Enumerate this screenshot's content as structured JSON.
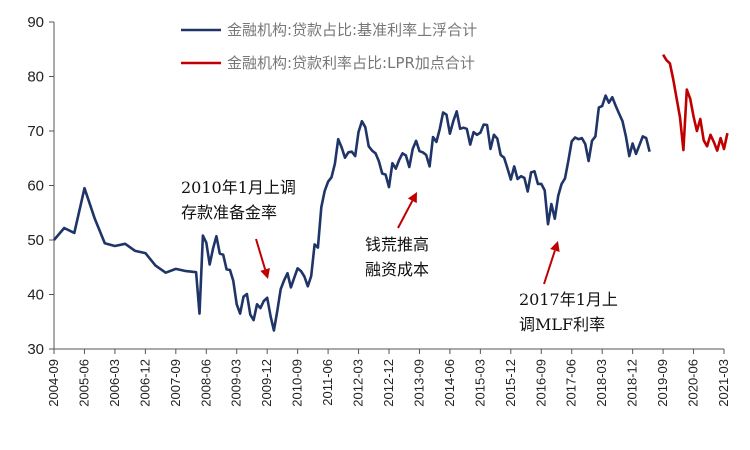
{
  "chart_data": {
    "type": "line",
    "title": "",
    "xlabel": "",
    "ylabel": "",
    "ylim": [
      30,
      90
    ],
    "yticks": [
      30,
      40,
      50,
      60,
      70,
      80,
      90
    ],
    "xticks": [
      "2004-09",
      "2005-06",
      "2006-03",
      "2006-12",
      "2007-09",
      "2008-06",
      "2009-03",
      "2009-12",
      "2010-09",
      "2011-06",
      "2012-03",
      "2012-12",
      "2013-09",
      "2014-06",
      "2015-03",
      "2015-12",
      "2016-09",
      "2017-06",
      "2018-03",
      "2018-12",
      "2019-09",
      "2020-06",
      "2021-03"
    ],
    "xrange": [
      "2004-09",
      "2021-03"
    ],
    "legend_position": "top-center",
    "grid": false,
    "series": [
      {
        "name": "金融机构:贷款占比:基准利率上浮合计",
        "color": "#1f3467",
        "points": [
          [
            "2004-09",
            50.0
          ],
          [
            "2004-12",
            52.2
          ],
          [
            "2005-03",
            51.3
          ],
          [
            "2005-06",
            59.5
          ],
          [
            "2005-09",
            54.0
          ],
          [
            "2005-12",
            49.4
          ],
          [
            "2006-03",
            48.9
          ],
          [
            "2006-06",
            49.3
          ],
          [
            "2006-09",
            48.0
          ],
          [
            "2006-12",
            47.6
          ],
          [
            "2007-03",
            45.3
          ],
          [
            "2007-06",
            44.0
          ],
          [
            "2007-09",
            44.7
          ],
          [
            "2007-12",
            44.3
          ],
          [
            "2008-03",
            44.1
          ],
          [
            "2008-04",
            36.5
          ],
          [
            "2008-05",
            50.8
          ],
          [
            "2008-06",
            49.5
          ],
          [
            "2008-07",
            45.5
          ],
          [
            "2008-08",
            48.4
          ],
          [
            "2008-09",
            50.7
          ],
          [
            "2008-10",
            47.5
          ],
          [
            "2008-11",
            47.3
          ],
          [
            "2008-12",
            44.6
          ],
          [
            "2009-01",
            44.5
          ],
          [
            "2009-02",
            42.5
          ],
          [
            "2009-03",
            38.2
          ],
          [
            "2009-04",
            36.5
          ],
          [
            "2009-05",
            39.6
          ],
          [
            "2009-06",
            40.1
          ],
          [
            "2009-07",
            36.3
          ],
          [
            "2009-08",
            35.3
          ],
          [
            "2009-09",
            38.2
          ],
          [
            "2009-10",
            37.5
          ],
          [
            "2009-11",
            38.8
          ],
          [
            "2009-12",
            39.4
          ],
          [
            "2010-01",
            36.0
          ],
          [
            "2010-02",
            33.4
          ],
          [
            "2010-03",
            37.0
          ],
          [
            "2010-04",
            41.0
          ],
          [
            "2010-05",
            42.6
          ],
          [
            "2010-06",
            43.9
          ],
          [
            "2010-07",
            41.3
          ],
          [
            "2010-08",
            43.1
          ],
          [
            "2010-09",
            44.8
          ],
          [
            "2010-10",
            44.3
          ],
          [
            "2010-11",
            43.3
          ],
          [
            "2010-12",
            41.5
          ],
          [
            "2011-01",
            43.4
          ],
          [
            "2011-02",
            49.2
          ],
          [
            "2011-03",
            48.6
          ],
          [
            "2011-04",
            56.0
          ],
          [
            "2011-05",
            59.0
          ],
          [
            "2011-06",
            60.7
          ],
          [
            "2011-07",
            61.5
          ],
          [
            "2011-08",
            64.0
          ],
          [
            "2011-09",
            68.5
          ],
          [
            "2011-10",
            67.0
          ],
          [
            "2011-11",
            65.1
          ],
          [
            "2011-12",
            66.1
          ],
          [
            "2012-01",
            66.2
          ],
          [
            "2012-02",
            65.4
          ],
          [
            "2012-03",
            69.8
          ],
          [
            "2012-04",
            71.8
          ],
          [
            "2012-05",
            70.7
          ],
          [
            "2012-06",
            67.2
          ],
          [
            "2012-07",
            66.4
          ],
          [
            "2012-08",
            65.9
          ],
          [
            "2012-09",
            64.5
          ],
          [
            "2012-10",
            62.2
          ],
          [
            "2012-11",
            62.0
          ],
          [
            "2012-12",
            59.7
          ],
          [
            "2013-01",
            64.1
          ],
          [
            "2013-02",
            63.1
          ],
          [
            "2013-03",
            64.7
          ],
          [
            "2013-04",
            65.9
          ],
          [
            "2013-05",
            65.5
          ],
          [
            "2013-06",
            63.4
          ],
          [
            "2013-07",
            66.7
          ],
          [
            "2013-08",
            68.2
          ],
          [
            "2013-09",
            66.3
          ],
          [
            "2013-10",
            66.1
          ],
          [
            "2013-11",
            65.6
          ],
          [
            "2013-12",
            63.5
          ],
          [
            "2014-01",
            68.9
          ],
          [
            "2014-02",
            68.0
          ],
          [
            "2014-03",
            70.4
          ],
          [
            "2014-04",
            73.4
          ],
          [
            "2014-05",
            73.0
          ],
          [
            "2014-06",
            69.5
          ],
          [
            "2014-07",
            71.8
          ],
          [
            "2014-08",
            73.6
          ],
          [
            "2014-09",
            70.4
          ],
          [
            "2014-10",
            70.6
          ],
          [
            "2014-11",
            70.4
          ],
          [
            "2014-12",
            67.5
          ],
          [
            "2015-01",
            69.8
          ],
          [
            "2015-02",
            69.3
          ],
          [
            "2015-03",
            69.7
          ],
          [
            "2015-04",
            71.2
          ],
          [
            "2015-05",
            71.1
          ],
          [
            "2015-06",
            66.7
          ],
          [
            "2015-07",
            69.3
          ],
          [
            "2015-08",
            68.6
          ],
          [
            "2015-09",
            65.6
          ],
          [
            "2015-10",
            65.1
          ],
          [
            "2015-11",
            63.2
          ],
          [
            "2015-12",
            61.1
          ],
          [
            "2016-01",
            63.5
          ],
          [
            "2016-02",
            61.2
          ],
          [
            "2016-03",
            61.7
          ],
          [
            "2016-04",
            61.4
          ],
          [
            "2016-05",
            58.9
          ],
          [
            "2016-06",
            62.4
          ],
          [
            "2016-07",
            62.6
          ],
          [
            "2016-08",
            60.3
          ],
          [
            "2016-09",
            60.3
          ],
          [
            "2016-10",
            59.1
          ],
          [
            "2016-11",
            52.9
          ],
          [
            "2016-12",
            56.6
          ],
          [
            "2017-01",
            53.9
          ],
          [
            "2017-02",
            58.1
          ],
          [
            "2017-03",
            60.3
          ],
          [
            "2017-04",
            61.3
          ],
          [
            "2017-05",
            64.5
          ],
          [
            "2017-06",
            68.1
          ],
          [
            "2017-07",
            68.8
          ],
          [
            "2017-08",
            68.5
          ],
          [
            "2017-09",
            68.7
          ],
          [
            "2017-10",
            67.6
          ],
          [
            "2017-11",
            64.5
          ],
          [
            "2017-12",
            68.2
          ],
          [
            "2018-01",
            69.0
          ],
          [
            "2018-02",
            74.3
          ],
          [
            "2018-03",
            74.6
          ],
          [
            "2018-04",
            76.5
          ],
          [
            "2018-05",
            75.2
          ],
          [
            "2018-06",
            76.2
          ],
          [
            "2018-07",
            74.6
          ],
          [
            "2018-08",
            73.2
          ],
          [
            "2018-09",
            71.8
          ],
          [
            "2018-10",
            69.0
          ],
          [
            "2018-11",
            65.4
          ],
          [
            "2018-12",
            67.7
          ],
          [
            "2019-01",
            65.8
          ],
          [
            "2019-02",
            67.4
          ],
          [
            "2019-03",
            69.0
          ],
          [
            "2019-04",
            68.7
          ],
          [
            "2019-05",
            66.2
          ]
        ]
      },
      {
        "name": "金融机构:贷款利率占比:LPR加点合计",
        "color": "#c00000",
        "points": [
          [
            "2019-09",
            84.0
          ],
          [
            "2019-10",
            83.0
          ],
          [
            "2019-11",
            82.4
          ],
          [
            "2019-12",
            79.5
          ],
          [
            "2020-01",
            76.0
          ],
          [
            "2020-02",
            72.5
          ],
          [
            "2020-03",
            66.5
          ],
          [
            "2020-04",
            77.6
          ],
          [
            "2020-05",
            75.9
          ],
          [
            "2020-06",
            72.7
          ],
          [
            "2020-07",
            70.0
          ],
          [
            "2020-08",
            72.2
          ],
          [
            "2020-09",
            68.3
          ],
          [
            "2020-10",
            67.2
          ],
          [
            "2020-11",
            69.3
          ],
          [
            "2020-12",
            68.0
          ],
          [
            "2021-01",
            66.4
          ],
          [
            "2021-02",
            68.7
          ],
          [
            "2021-03",
            66.7
          ],
          [
            "2021-04",
            69.6
          ]
        ]
      }
    ],
    "annotations": [
      {
        "lines": [
          "2010年1月上调",
          "存款准备金率"
        ]
      },
      {
        "lines": [
          "钱荒推高",
          "融资成本"
        ]
      },
      {
        "lines": [
          "2017年1月上",
          "调MLF利率"
        ]
      }
    ]
  }
}
